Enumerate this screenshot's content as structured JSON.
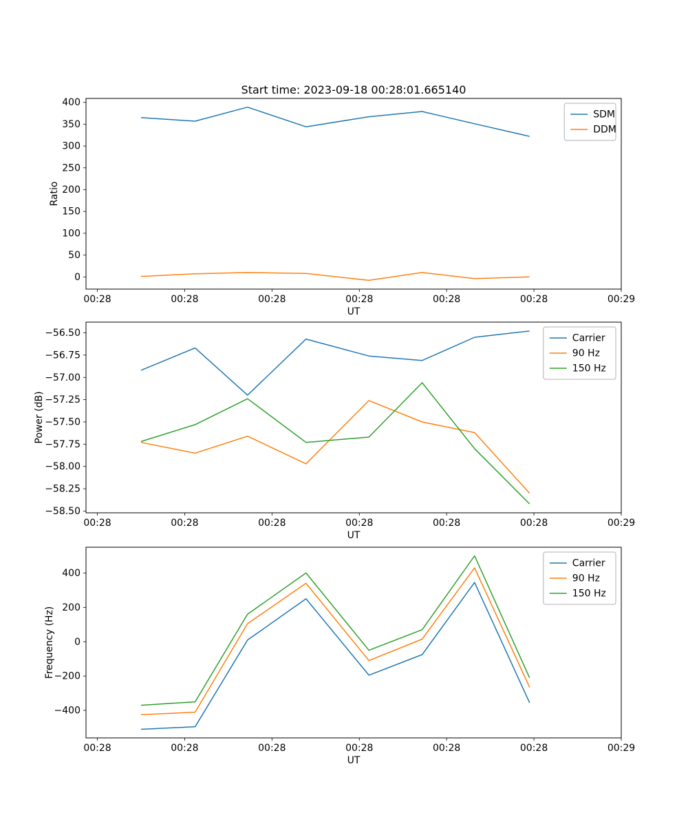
{
  "figure": {
    "background": "#ffffff"
  },
  "chart_data": [
    {
      "type": "line",
      "name": "ratio",
      "title": "Start time: 2023-09-18 00:28:01.665140",
      "xlabel": "UT",
      "ylabel": "Ratio",
      "xlim": [
        -1.3,
        60
      ],
      "ylim": [
        -28,
        409
      ],
      "xticks": [
        0,
        10,
        20,
        30,
        40,
        50,
        60
      ],
      "xtick_labels": [
        "00:28",
        "00:28",
        "00:28",
        "00:28",
        "00:28",
        "00:28",
        "00:29"
      ],
      "yticks": [
        0,
        50,
        100,
        150,
        200,
        250,
        300,
        350,
        400
      ],
      "ytick_labels": [
        "0",
        "50",
        "100",
        "150",
        "200",
        "250",
        "300",
        "350",
        "400"
      ],
      "x": [
        5.0,
        11.2,
        17.2,
        23.9,
        31.1,
        37.2,
        43.2,
        49.5
      ],
      "series": [
        {
          "name": "SDM",
          "color": "#1f77b4",
          "values": [
            365,
            357,
            389,
            344,
            367,
            379,
            351,
            322
          ]
        },
        {
          "name": "DDM",
          "color": "#ff7f0e",
          "values": [
            1,
            7,
            10,
            8,
            -8,
            10,
            -4,
            0
          ]
        }
      ],
      "legend": {
        "position": "upper right",
        "entries": [
          "SDM",
          "DDM"
        ]
      },
      "grid": false
    },
    {
      "type": "line",
      "name": "power",
      "title": "",
      "xlabel": "UT",
      "ylabel": "Power (dB)",
      "xlim": [
        -1.3,
        60
      ],
      "ylim": [
        -58.52,
        -56.38
      ],
      "xticks": [
        0,
        10,
        20,
        30,
        40,
        50,
        60
      ],
      "xtick_labels": [
        "00:28",
        "00:28",
        "00:28",
        "00:28",
        "00:28",
        "00:28",
        "00:29"
      ],
      "yticks": [
        -58.5,
        -58.25,
        -58.0,
        -57.75,
        -57.5,
        -57.25,
        -57.0,
        -56.75,
        -56.5
      ],
      "ytick_labels": [
        "−58.50",
        "−58.25",
        "−58.00",
        "−57.75",
        "−57.50",
        "−57.25",
        "−57.00",
        "−56.75",
        "−56.50"
      ],
      "x": [
        5.0,
        11.2,
        17.2,
        23.9,
        31.1,
        37.2,
        43.2,
        49.5
      ],
      "series": [
        {
          "name": "Carrier",
          "color": "#1f77b4",
          "values": [
            -56.92,
            -56.67,
            -57.2,
            -56.57,
            -56.76,
            -56.81,
            -56.55,
            -56.48
          ]
        },
        {
          "name": "90 Hz",
          "color": "#ff7f0e",
          "values": [
            -57.73,
            -57.85,
            -57.66,
            -57.97,
            -57.26,
            -57.5,
            -57.62,
            -58.3
          ]
        },
        {
          "name": "150 Hz",
          "color": "#2ca02c",
          "values": [
            -57.72,
            -57.53,
            -57.24,
            -57.73,
            -57.67,
            -57.06,
            -57.8,
            -58.42
          ]
        }
      ],
      "legend": {
        "position": "upper right",
        "entries": [
          "Carrier",
          "90 Hz",
          "150 Hz"
        ]
      },
      "grid": false
    },
    {
      "type": "line",
      "name": "frequency",
      "title": "",
      "xlabel": "UT",
      "ylabel": "Frequency (Hz)",
      "xlim": [
        -1.3,
        60
      ],
      "ylim": [
        -560,
        550
      ],
      "xticks": [
        0,
        10,
        20,
        30,
        40,
        50,
        60
      ],
      "xtick_labels": [
        "00:28",
        "00:28",
        "00:28",
        "00:28",
        "00:28",
        "00:28",
        "00:29"
      ],
      "yticks": [
        -400,
        -200,
        0,
        200,
        400
      ],
      "ytick_labels": [
        "−400",
        "−200",
        "0",
        "200",
        "400"
      ],
      "x": [
        5.0,
        11.2,
        17.2,
        23.9,
        31.1,
        37.2,
        43.2,
        49.5
      ],
      "series": [
        {
          "name": "Carrier",
          "color": "#1f77b4",
          "values": [
            -510,
            -495,
            10,
            250,
            -195,
            -75,
            345,
            -355
          ]
        },
        {
          "name": "90 Hz",
          "color": "#ff7f0e",
          "values": [
            -425,
            -410,
            105,
            340,
            -110,
            15,
            430,
            -265
          ]
        },
        {
          "name": "150 Hz",
          "color": "#2ca02c",
          "values": [
            -370,
            -350,
            160,
            400,
            -50,
            70,
            500,
            -210
          ]
        }
      ],
      "legend": {
        "position": "upper right",
        "entries": [
          "Carrier",
          "90 Hz",
          "150 Hz"
        ]
      },
      "grid": false
    }
  ]
}
